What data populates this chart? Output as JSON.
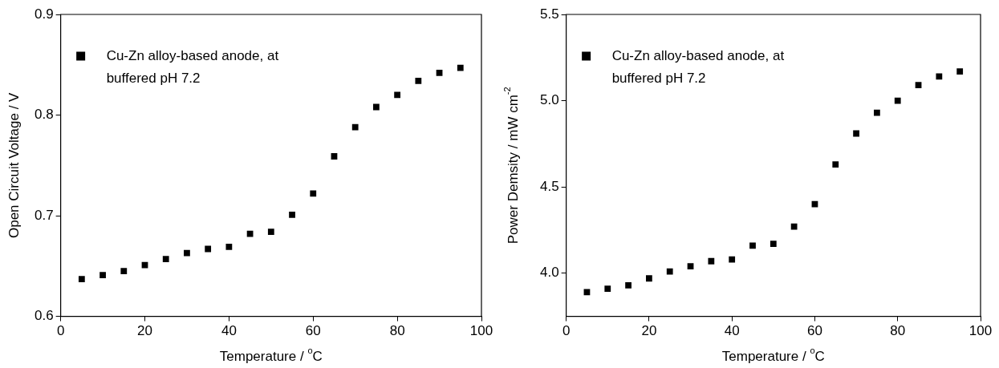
{
  "chart_data": [
    {
      "type": "scatter",
      "xlabel": "Temperature / $^{o}$C",
      "ylabel": "Open Circuit Voltage / V",
      "x": [
        5,
        10,
        15,
        20,
        25,
        30,
        35,
        40,
        45,
        50,
        55,
        60,
        65,
        70,
        75,
        80,
        85,
        90,
        95
      ],
      "series": [
        {
          "name": "Cu-Zn alloy-based anode, at buffered pH 7.2",
          "color": "#000000",
          "values": [
            0.637,
            0.641,
            0.645,
            0.651,
            0.657,
            0.663,
            0.667,
            0.669,
            0.682,
            0.684,
            0.701,
            0.722,
            0.759,
            0.788,
            0.808,
            0.82,
            0.834,
            0.842,
            0.847
          ]
        }
      ],
      "xlim": [
        0,
        100
      ],
      "xticks": [
        0,
        20,
        40,
        60,
        80,
        100
      ],
      "ylim": [
        0.6,
        0.9
      ],
      "yticks": [
        {
          "value": 0.6,
          "label": "0.6"
        },
        {
          "value": 0.7,
          "label": "0.7"
        },
        {
          "value": 0.8,
          "label": "0.8"
        },
        {
          "value": 0.9,
          "label": "0.9"
        }
      ],
      "marker": "square",
      "legend": "top left",
      "grid": false
    },
    {
      "type": "scatter",
      "xlabel": "Temperature / $^{o}$C",
      "ylabel": "Power Demsity / mW cm$^{-2}$",
      "x": [
        5,
        10,
        15,
        20,
        25,
        30,
        35,
        40,
        45,
        50,
        55,
        60,
        65,
        70,
        75,
        80,
        85,
        90,
        95
      ],
      "series": [
        {
          "name": "Cu-Zn alloy-based anode, at buffered pH 7.2",
          "color": "#000000",
          "values": [
            3.89,
            3.91,
            3.93,
            3.97,
            4.01,
            4.04,
            4.07,
            4.08,
            4.16,
            4.17,
            4.27,
            4.4,
            4.63,
            4.81,
            4.93,
            5.0,
            5.09,
            5.14,
            5.17
          ]
        }
      ],
      "xlim": [
        0,
        100
      ],
      "xticks": [
        0,
        20,
        40,
        60,
        80,
        100
      ],
      "ylim": [
        3.75,
        5.5
      ],
      "yticks": [
        {
          "value": 4.0,
          "label": "4.0"
        },
        {
          "value": 4.5,
          "label": "4.5"
        },
        {
          "value": 5.0,
          "label": "5.0"
        },
        {
          "value": 5.5,
          "label": "5.5"
        }
      ],
      "marker": "square",
      "legend": "top left",
      "grid": false
    }
  ]
}
